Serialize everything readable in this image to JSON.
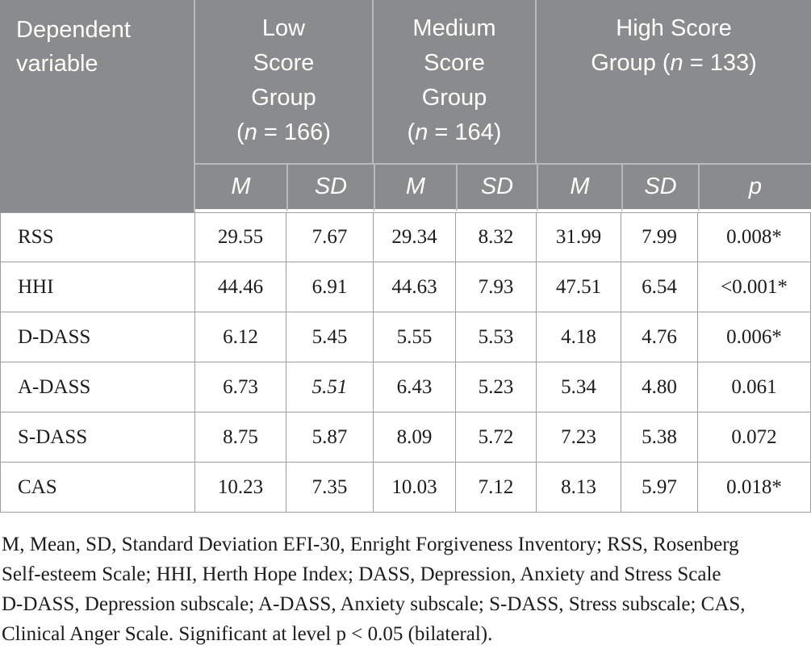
{
  "colors": {
    "header-bg": "#8a8b8c",
    "header-divider": "#b7babc",
    "body-border": "#9e9e9e",
    "text": "#1c1c1c",
    "header-text": "#ffffff"
  },
  "table": {
    "header": {
      "col0": "Dependent variable",
      "groups": [
        {
          "name": "Low Score Group",
          "lines": [
            "Low",
            "Score",
            "Group"
          ],
          "n_prefix": "(",
          "n_sym": "n",
          "n_rest": " = 166)",
          "n": "166"
        },
        {
          "name": "Medium Score Group",
          "lines": [
            "Medium",
            "Score",
            "Group"
          ],
          "n_prefix": "(",
          "n_sym": "n",
          "n_rest": " = 164)",
          "n": "164"
        },
        {
          "name": "High Score Group",
          "lines": [
            "High Score"
          ],
          "n_prefix": "Group (",
          "n_sym": "n",
          "n_rest": " = 133)",
          "n": "133"
        }
      ],
      "sub": [
        "M",
        "SD",
        "M",
        "SD",
        "M",
        "SD",
        "p"
      ]
    },
    "rows": [
      {
        "label": "RSS",
        "values": [
          "29.55",
          "7.67",
          "29.34",
          "8.32",
          "31.99",
          "7.99",
          "0.008*"
        ]
      },
      {
        "label": "HHI",
        "values": [
          "44.46",
          "6.91",
          "44.63",
          "7.93",
          "47.51",
          "6.54",
          "<0.001*"
        ]
      },
      {
        "label": "D-DASS",
        "values": [
          "6.12",
          "5.45",
          "5.55",
          "5.53",
          "4.18",
          "4.76",
          "0.006*"
        ]
      },
      {
        "label": "A-DASS",
        "values": [
          "6.73",
          "5.51",
          "6.43",
          "5.23",
          "5.34",
          "4.80",
          "0.061"
        ]
      },
      {
        "label": "S-DASS",
        "values": [
          "8.75",
          "5.87",
          "8.09",
          "5.72",
          "7.23",
          "5.38",
          "0.072"
        ]
      },
      {
        "label": "CAS",
        "values": [
          "10.23",
          "7.35",
          "10.03",
          "7.12",
          "8.13",
          "5.97",
          "0.018*"
        ]
      }
    ]
  },
  "footnote": {
    "lines": [
      "M, Mean, SD, Standard Deviation EFI-30, Enright Forgiveness Inventory; RSS, Rosenberg",
      "Self-esteem Scale; HHI, Herth Hope Index; DASS, Depression, Anxiety and Stress Scale",
      "D-DASS, Depression subscale; A-DASS, Anxiety subscale; S-DASS, Stress subscale; CAS,",
      "Clinical Anger Scale. Significant at level p < 0.05 (bilateral)."
    ]
  }
}
